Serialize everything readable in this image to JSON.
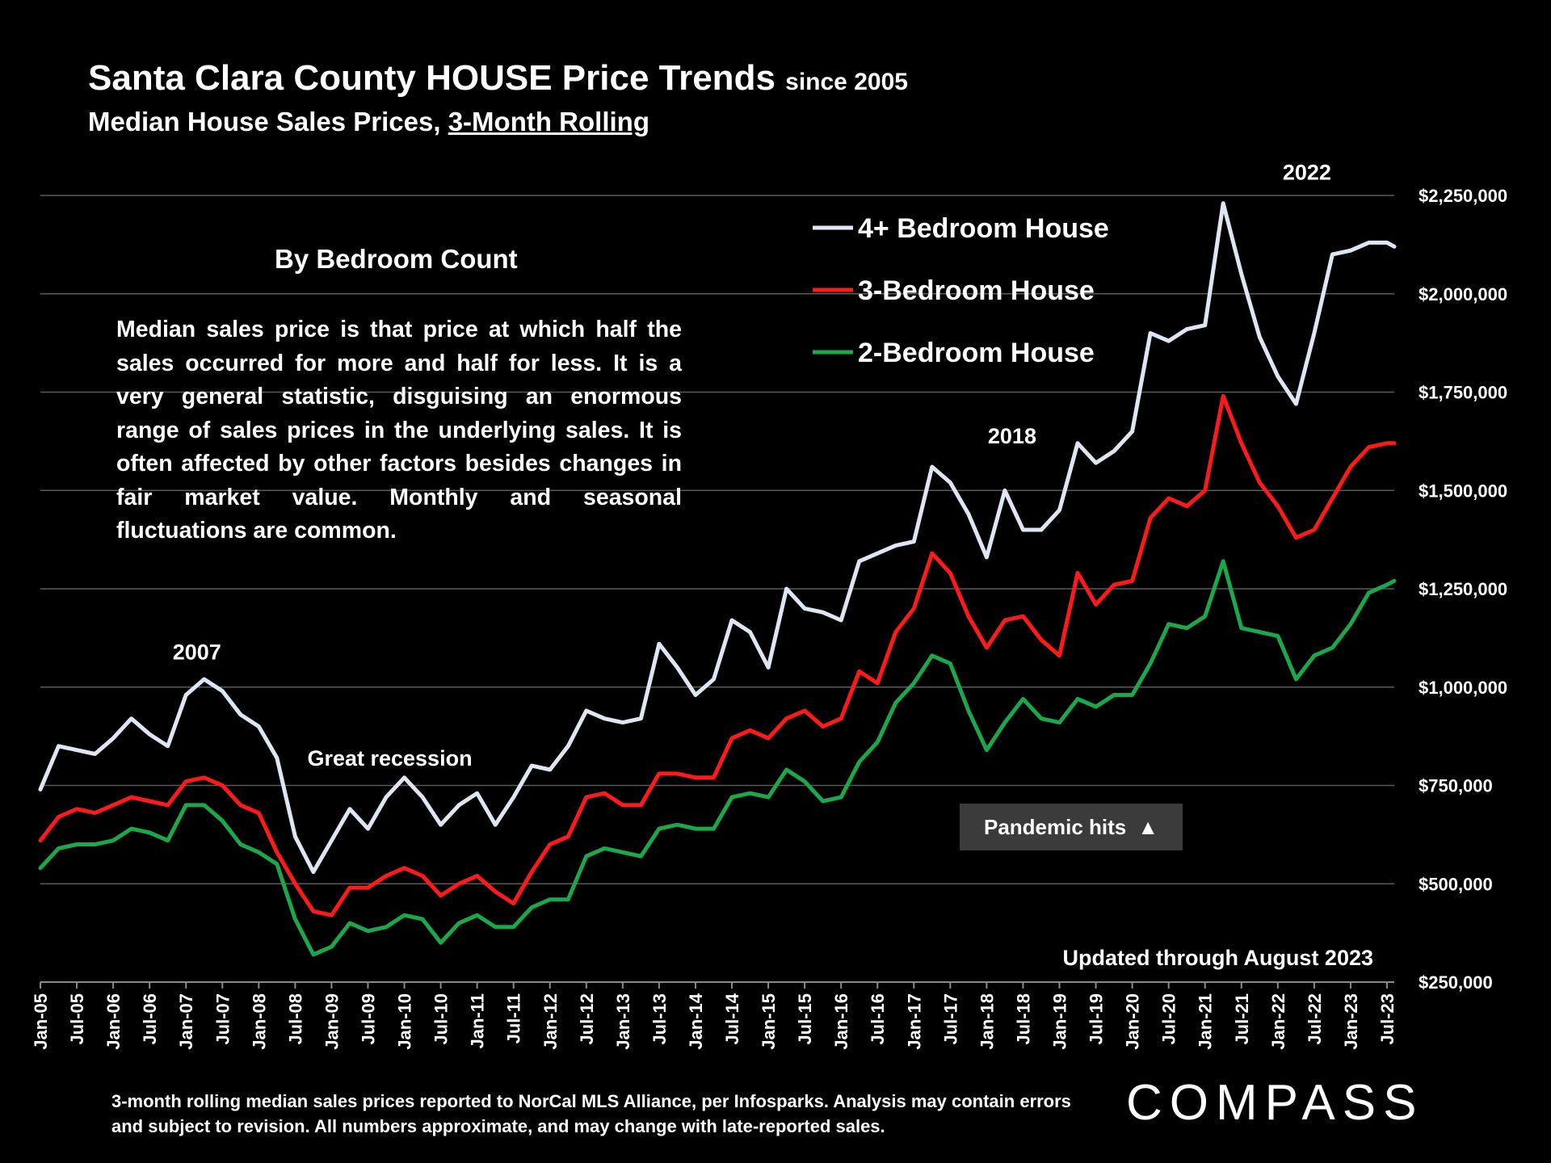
{
  "header": {
    "title": "Santa Clara County HOUSE Price Trends",
    "title_suffix": "since 2005",
    "subtitle_prefix": "Median House Sales Prices, ",
    "subtitle_underlined": "3-Month Rolling"
  },
  "description_box": {
    "heading": "By Bedroom Count",
    "body": "Median sales price is that price at which half the sales occurred for more and half for less. It is a very general statistic, disguising an enormous range of sales prices in the underlying sales. It is often affected by other factors besides changes in fair market value. Monthly and seasonal fluctuations are common."
  },
  "annotations": {
    "pandemic": "Pandemic hits",
    "pandemic_icon": "triangle-up-icon",
    "updated": "Updated through August 2023"
  },
  "footnote": "3-month rolling median sales prices reported to NorCal MLS Alliance, per Infosparks.  Analysis may contain errors and subject to revision. All numbers approximate, and may change with late-reported sales.",
  "logo": "COMPASS",
  "chart_data": {
    "type": "line",
    "title": "Santa Clara County HOUSE Price Trends since 2005",
    "subtitle": "Median House Sales Prices, 3-Month Rolling",
    "xlabel": "",
    "ylabel": "",
    "ylim": [
      250000,
      2250000
    ],
    "y_ticks": [
      250000,
      500000,
      750000,
      1000000,
      1250000,
      1500000,
      1750000,
      2000000,
      2250000
    ],
    "y_tick_labels": [
      "$250,000",
      "$500,000",
      "$750,000",
      "$1,000,000",
      "$1,250,000",
      "$1,500,000",
      "$1,750,000",
      "$2,000,000",
      "$2,250,000"
    ],
    "x_tick_labels": [
      "Jan-05",
      "Jul-05",
      "Jan-06",
      "Jul-06",
      "Jan-07",
      "Jul-07",
      "Jan-08",
      "Jul-08",
      "Jan-09",
      "Jul-09",
      "Jan-10",
      "Jul-10",
      "Jan-11",
      "Jul-11",
      "Jan-12",
      "Jul-12",
      "Jan-13",
      "Jul-13",
      "Jan-14",
      "Jul-14",
      "Jan-15",
      "Jul-15",
      "Jan-16",
      "Jul-16",
      "Jan-17",
      "Jul-17",
      "Jan-18",
      "Jul-18",
      "Jan-19",
      "Jul-19",
      "Jan-20",
      "Jul-20",
      "Jan-21",
      "Jul-21",
      "Jan-22",
      "Jul-22",
      "Jan-23",
      "Jul-23"
    ],
    "x_note": "x values are semiannual index positions (0 = Jan-05, 37 = Jul-23)",
    "grid": true,
    "legend_position": "top-right",
    "peak_labels": [
      {
        "label": "2007",
        "x": 4.3,
        "y": 1070000
      },
      {
        "label": "2018",
        "x": 26.7,
        "y": 1620000
      },
      {
        "label": "2022",
        "x": 34.8,
        "y": 2290000
      },
      {
        "label": "Great recession",
        "x": 9.6,
        "y": 800000
      }
    ],
    "series": [
      {
        "name": "4+ Bedroom House",
        "color": "#dde6f2",
        "x": [
          0,
          0.5,
          1,
          1.5,
          2,
          2.5,
          3,
          3.5,
          4,
          4.5,
          5,
          5.5,
          6,
          6.5,
          7,
          7.5,
          8,
          8.5,
          9,
          9.5,
          10,
          10.5,
          11,
          11.5,
          12,
          12.5,
          13,
          13.5,
          14,
          14.5,
          15,
          15.5,
          16,
          16.5,
          17,
          17.5,
          18,
          18.5,
          19,
          19.5,
          20,
          20.5,
          21,
          21.5,
          22,
          22.5,
          23,
          23.5,
          24,
          24.5,
          25,
          25.5,
          26,
          26.5,
          27,
          27.5,
          28,
          28.5,
          29,
          29.5,
          30,
          30.5,
          31,
          31.5,
          32,
          32.5,
          33,
          33.5,
          34,
          34.5,
          35,
          35.5,
          36,
          36.5,
          37,
          37.2
        ],
        "values": [
          740000,
          850000,
          840000,
          830000,
          870000,
          920000,
          880000,
          850000,
          980000,
          1020000,
          990000,
          930000,
          900000,
          820000,
          620000,
          530000,
          610000,
          690000,
          640000,
          720000,
          770000,
          720000,
          650000,
          700000,
          730000,
          650000,
          720000,
          800000,
          790000,
          850000,
          940000,
          920000,
          910000,
          920000,
          1110000,
          1050000,
          980000,
          1020000,
          1170000,
          1140000,
          1050000,
          1250000,
          1200000,
          1190000,
          1170000,
          1320000,
          1340000,
          1360000,
          1370000,
          1560000,
          1520000,
          1440000,
          1330000,
          1500000,
          1400000,
          1400000,
          1450000,
          1620000,
          1570000,
          1600000,
          1650000,
          1900000,
          1880000,
          1910000,
          1920000,
          2230000,
          2050000,
          1890000,
          1790000,
          1720000,
          1900000,
          2100000,
          2110000,
          2130000,
          2130000,
          2120000
        ]
      },
      {
        "name": "3-Bedroom House",
        "color": "#ff1a1a",
        "x": [
          0,
          0.5,
          1,
          1.5,
          2,
          2.5,
          3,
          3.5,
          4,
          4.5,
          5,
          5.5,
          6,
          6.5,
          7,
          7.5,
          8,
          8.5,
          9,
          9.5,
          10,
          10.5,
          11,
          11.5,
          12,
          12.5,
          13,
          13.5,
          14,
          14.5,
          15,
          15.5,
          16,
          16.5,
          17,
          17.5,
          18,
          18.5,
          19,
          19.5,
          20,
          20.5,
          21,
          21.5,
          22,
          22.5,
          23,
          23.5,
          24,
          24.5,
          25,
          25.5,
          26,
          26.5,
          27,
          27.5,
          28,
          28.5,
          29,
          29.5,
          30,
          30.5,
          31,
          31.5,
          32,
          32.5,
          33,
          33.5,
          34,
          34.5,
          35,
          35.5,
          36,
          36.5,
          37,
          37.2
        ],
        "values": [
          610000,
          670000,
          690000,
          680000,
          700000,
          720000,
          710000,
          700000,
          760000,
          770000,
          750000,
          700000,
          680000,
          580000,
          500000,
          430000,
          420000,
          490000,
          490000,
          520000,
          540000,
          520000,
          470000,
          500000,
          520000,
          480000,
          450000,
          530000,
          600000,
          620000,
          720000,
          730000,
          700000,
          700000,
          780000,
          780000,
          770000,
          770000,
          870000,
          890000,
          870000,
          920000,
          940000,
          900000,
          920000,
          1040000,
          1010000,
          1140000,
          1200000,
          1340000,
          1290000,
          1180000,
          1100000,
          1170000,
          1180000,
          1120000,
          1080000,
          1290000,
          1210000,
          1260000,
          1270000,
          1430000,
          1480000,
          1460000,
          1500000,
          1740000,
          1620000,
          1520000,
          1460000,
          1380000,
          1400000,
          1480000,
          1560000,
          1610000,
          1620000,
          1620000
        ]
      },
      {
        "name": "2-Bedroom House",
        "color": "#1aa84a",
        "x": [
          0,
          0.5,
          1,
          1.5,
          2,
          2.5,
          3,
          3.5,
          4,
          4.5,
          5,
          5.5,
          6,
          6.5,
          7,
          7.5,
          8,
          8.5,
          9,
          9.5,
          10,
          10.5,
          11,
          11.5,
          12,
          12.5,
          13,
          13.5,
          14,
          14.5,
          15,
          15.5,
          16,
          16.5,
          17,
          17.5,
          18,
          18.5,
          19,
          19.5,
          20,
          20.5,
          21,
          21.5,
          22,
          22.5,
          23,
          23.5,
          24,
          24.5,
          25,
          25.5,
          26,
          26.5,
          27,
          27.5,
          28,
          28.5,
          29,
          29.5,
          30,
          30.5,
          31,
          31.5,
          32,
          32.5,
          33,
          33.5,
          34,
          34.5,
          35,
          35.5,
          36,
          36.5,
          37,
          37.2
        ],
        "values": [
          540000,
          590000,
          600000,
          600000,
          610000,
          640000,
          630000,
          610000,
          700000,
          700000,
          660000,
          600000,
          580000,
          550000,
          410000,
          320000,
          340000,
          400000,
          380000,
          390000,
          420000,
          410000,
          350000,
          400000,
          420000,
          390000,
          390000,
          440000,
          460000,
          460000,
          570000,
          590000,
          580000,
          570000,
          640000,
          650000,
          640000,
          640000,
          720000,
          730000,
          720000,
          790000,
          760000,
          710000,
          720000,
          810000,
          860000,
          960000,
          1010000,
          1080000,
          1060000,
          940000,
          840000,
          910000,
          970000,
          920000,
          910000,
          970000,
          950000,
          980000,
          980000,
          1060000,
          1160000,
          1150000,
          1180000,
          1320000,
          1150000,
          1140000,
          1130000,
          1020000,
          1080000,
          1100000,
          1160000,
          1240000,
          1260000,
          1270000
        ]
      }
    ]
  }
}
